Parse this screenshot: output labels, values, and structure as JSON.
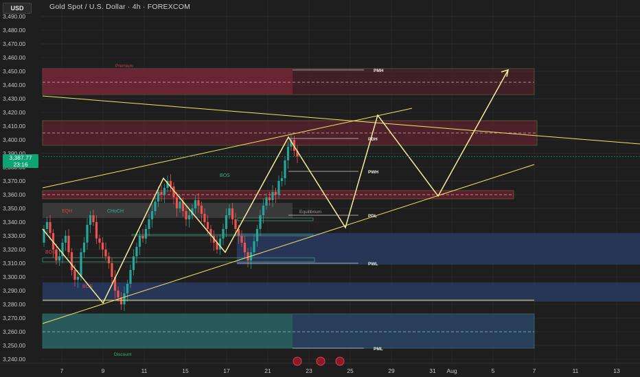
{
  "header": {
    "currency": "USD",
    "title": "Gold Spot / U.S. Dollar · 4h · FOREXCOM"
  },
  "current_price": {
    "value": "3,387.77",
    "countdown": "23:16"
  },
  "colors": {
    "background": "#1e1e1e",
    "up_candle": "#26a69a",
    "down_candle": "#ef5350",
    "trendline": "#f5e663",
    "premium_zone": "#7b2535",
    "discount_zone": "#2b3f6b",
    "equilibrium_zone": "#4a4a4a",
    "current_price_tag": "#0ea372"
  },
  "chart_data": {
    "type": "candlestick",
    "symbol": "Gold Spot / U.S. Dollar",
    "interval": "4h",
    "y_axis": {
      "range": [
        3240,
        3500
      ],
      "ticks": [
        "3,490.00",
        "3,480.00",
        "3,470.00",
        "3,460.00",
        "3,450.00",
        "3,440.00",
        "3,430.00",
        "3,420.00",
        "3,410.00",
        "3,400.00",
        "3,390.00",
        "3,380.00",
        "3,370.00",
        "3,360.00",
        "3,350.00",
        "3,340.00",
        "3,330.00",
        "3,320.00",
        "3,310.00",
        "3,300.00",
        "3,290.00",
        "3,280.00",
        "3,270.00",
        "3,260.00",
        "3,250.00",
        "3,240.00"
      ]
    },
    "x_axis": {
      "ticks": [
        "7",
        "9",
        "11",
        "15",
        "17",
        "21",
        "23",
        "25",
        "29",
        "31",
        "Aug",
        "5",
        "7",
        "11",
        "13"
      ]
    },
    "level_labels": [
      "PMH",
      "PDH",
      "PWH",
      "PDL",
      "PWL",
      "PML"
    ],
    "zone_labels": [
      "Premium",
      "Discount",
      "Equilibrium"
    ],
    "structure_labels": [
      "BOS",
      "EQH",
      "CHoCH",
      "BOS",
      "BOS"
    ],
    "grid": true
  }
}
